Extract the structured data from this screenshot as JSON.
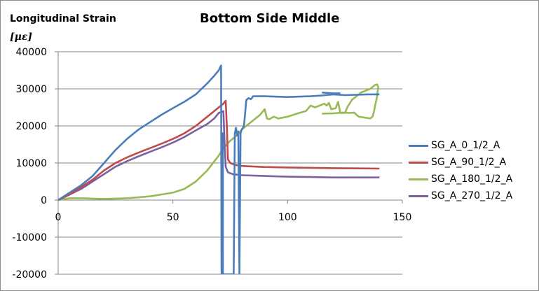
{
  "chart_data": {
    "type": "line",
    "title": "Bottom Side Middle",
    "ylabel": [
      "Longitudinal  Strain",
      "[με]"
    ],
    "xlabel": "",
    "xlim": [
      0,
      150
    ],
    "ylim": [
      -20000,
      40000
    ],
    "xticks": [
      0,
      50,
      100,
      150
    ],
    "yticks": [
      -20000,
      -10000,
      0,
      10000,
      20000,
      30000,
      40000
    ],
    "grid": "horizontal",
    "legend_position": "right",
    "series": [
      {
        "name": "SG_A_0_1/2_A",
        "color": "#4a7ebb",
        "points": [
          [
            0,
            0
          ],
          [
            5,
            2000
          ],
          [
            10,
            4000
          ],
          [
            15,
            6500
          ],
          [
            20,
            10000
          ],
          [
            25,
            13500
          ],
          [
            30,
            16500
          ],
          [
            35,
            19000
          ],
          [
            40,
            21000
          ],
          [
            45,
            23000
          ],
          [
            50,
            24800
          ],
          [
            55,
            26500
          ],
          [
            60,
            28500
          ],
          [
            65,
            31500
          ],
          [
            68,
            33500
          ],
          [
            70,
            35000
          ],
          [
            71,
            36300
          ],
          [
            71.2,
            -20000
          ],
          [
            71.5,
            -20000
          ],
          [
            71.8,
            18000
          ],
          [
            71.8,
            -20000
          ],
          [
            72,
            -20000
          ],
          [
            76.5,
            -20000
          ],
          [
            77,
            18000
          ],
          [
            77.5,
            19500
          ],
          [
            78,
            17500
          ],
          [
            78.5,
            18500
          ],
          [
            79,
            -20000
          ],
          [
            79.5,
            18000
          ],
          [
            80,
            19000
          ],
          [
            81,
            20000
          ],
          [
            82,
            27000
          ],
          [
            83,
            27500
          ],
          [
            84,
            27200
          ],
          [
            85,
            28000
          ],
          [
            90,
            28000
          ],
          [
            100,
            27800
          ],
          [
            110,
            28000
          ],
          [
            115,
            28200
          ],
          [
            120,
            28500
          ],
          [
            125,
            28300
          ],
          [
            130,
            28400
          ],
          [
            135,
            28500
          ],
          [
            140,
            28500
          ]
        ],
        "extra_points": [
          [
            115,
            29000
          ],
          [
            120,
            28800
          ],
          [
            123,
            28800
          ]
        ]
      },
      {
        "name": "SG_A_90_1/2_A",
        "color": "#be4b48",
        "points": [
          [
            0,
            0
          ],
          [
            5,
            1500
          ],
          [
            10,
            3500
          ],
          [
            15,
            5500
          ],
          [
            20,
            8000
          ],
          [
            25,
            10000
          ],
          [
            30,
            11500
          ],
          [
            35,
            12800
          ],
          [
            40,
            14000
          ],
          [
            45,
            15200
          ],
          [
            50,
            16500
          ],
          [
            55,
            18000
          ],
          [
            60,
            20000
          ],
          [
            65,
            22500
          ],
          [
            70,
            25000
          ],
          [
            72,
            26000
          ],
          [
            73,
            26800
          ],
          [
            73.5,
            20000
          ],
          [
            74,
            11000
          ],
          [
            75,
            10000
          ],
          [
            77,
            9500
          ],
          [
            80,
            9200
          ],
          [
            90,
            8900
          ],
          [
            100,
            8800
          ],
          [
            110,
            8700
          ],
          [
            120,
            8600
          ],
          [
            130,
            8550
          ],
          [
            140,
            8500
          ]
        ]
      },
      {
        "name": "SG_A_180_1/2_A",
        "color": "#98b954",
        "points": [
          [
            0,
            0
          ],
          [
            5,
            500
          ],
          [
            10,
            500
          ],
          [
            15,
            400
          ],
          [
            20,
            300
          ],
          [
            30,
            500
          ],
          [
            40,
            1000
          ],
          [
            50,
            2000
          ],
          [
            55,
            3000
          ],
          [
            60,
            5000
          ],
          [
            65,
            8000
          ],
          [
            70,
            12000
          ],
          [
            72,
            14000
          ],
          [
            75,
            16000
          ],
          [
            78,
            17500
          ],
          [
            80,
            19000
          ],
          [
            82,
            20000
          ],
          [
            85,
            21500
          ],
          [
            88,
            23000
          ],
          [
            90,
            24500
          ],
          [
            91,
            22000
          ],
          [
            92,
            21800
          ],
          [
            94,
            22500
          ],
          [
            96,
            22000
          ],
          [
            100,
            22500
          ],
          [
            105,
            23500
          ],
          [
            108,
            24000
          ],
          [
            110,
            25500
          ],
          [
            112,
            25000
          ],
          [
            114,
            25500
          ],
          [
            116,
            26000
          ],
          [
            117,
            25500
          ],
          [
            118,
            26200
          ],
          [
            119,
            24500
          ],
          [
            121,
            24800
          ],
          [
            122,
            26500
          ],
          [
            123,
            23500
          ],
          [
            125,
            23500
          ],
          [
            126,
            25000
          ],
          [
            128,
            27000
          ],
          [
            130,
            28000
          ],
          [
            132,
            29000
          ],
          [
            134,
            29500
          ],
          [
            136,
            30000
          ],
          [
            138,
            31000
          ],
          [
            139,
            31200
          ],
          [
            139.5,
            30500
          ],
          [
            139,
            28000
          ],
          [
            138,
            25000
          ],
          [
            137.5,
            23500
          ],
          [
            137,
            22500
          ],
          [
            136,
            22000
          ],
          [
            133,
            22300
          ],
          [
            131,
            22500
          ],
          [
            130,
            23000
          ],
          [
            129,
            23600
          ],
          [
            127,
            23500
          ],
          [
            124,
            23600
          ],
          [
            120,
            23400
          ],
          [
            115,
            23300
          ]
        ]
      },
      {
        "name": "SG_A_270_1/2_A",
        "color": "#7d60a0",
        "points": [
          [
            0,
            0
          ],
          [
            5,
            1500
          ],
          [
            10,
            3000
          ],
          [
            15,
            5000
          ],
          [
            20,
            7000
          ],
          [
            25,
            9000
          ],
          [
            30,
            10500
          ],
          [
            35,
            11800
          ],
          [
            40,
            13000
          ],
          [
            45,
            14200
          ],
          [
            50,
            15500
          ],
          [
            55,
            17000
          ],
          [
            60,
            18800
          ],
          [
            65,
            20500
          ],
          [
            68,
            22000
          ],
          [
            70,
            23500
          ],
          [
            72,
            24000
          ],
          [
            72.5,
            16000
          ],
          [
            73,
            9000
          ],
          [
            74,
            7500
          ],
          [
            76,
            7000
          ],
          [
            80,
            6700
          ],
          [
            90,
            6500
          ],
          [
            100,
            6300
          ],
          [
            110,
            6200
          ],
          [
            120,
            6100
          ],
          [
            130,
            6100
          ],
          [
            140,
            6100
          ]
        ]
      }
    ]
  }
}
